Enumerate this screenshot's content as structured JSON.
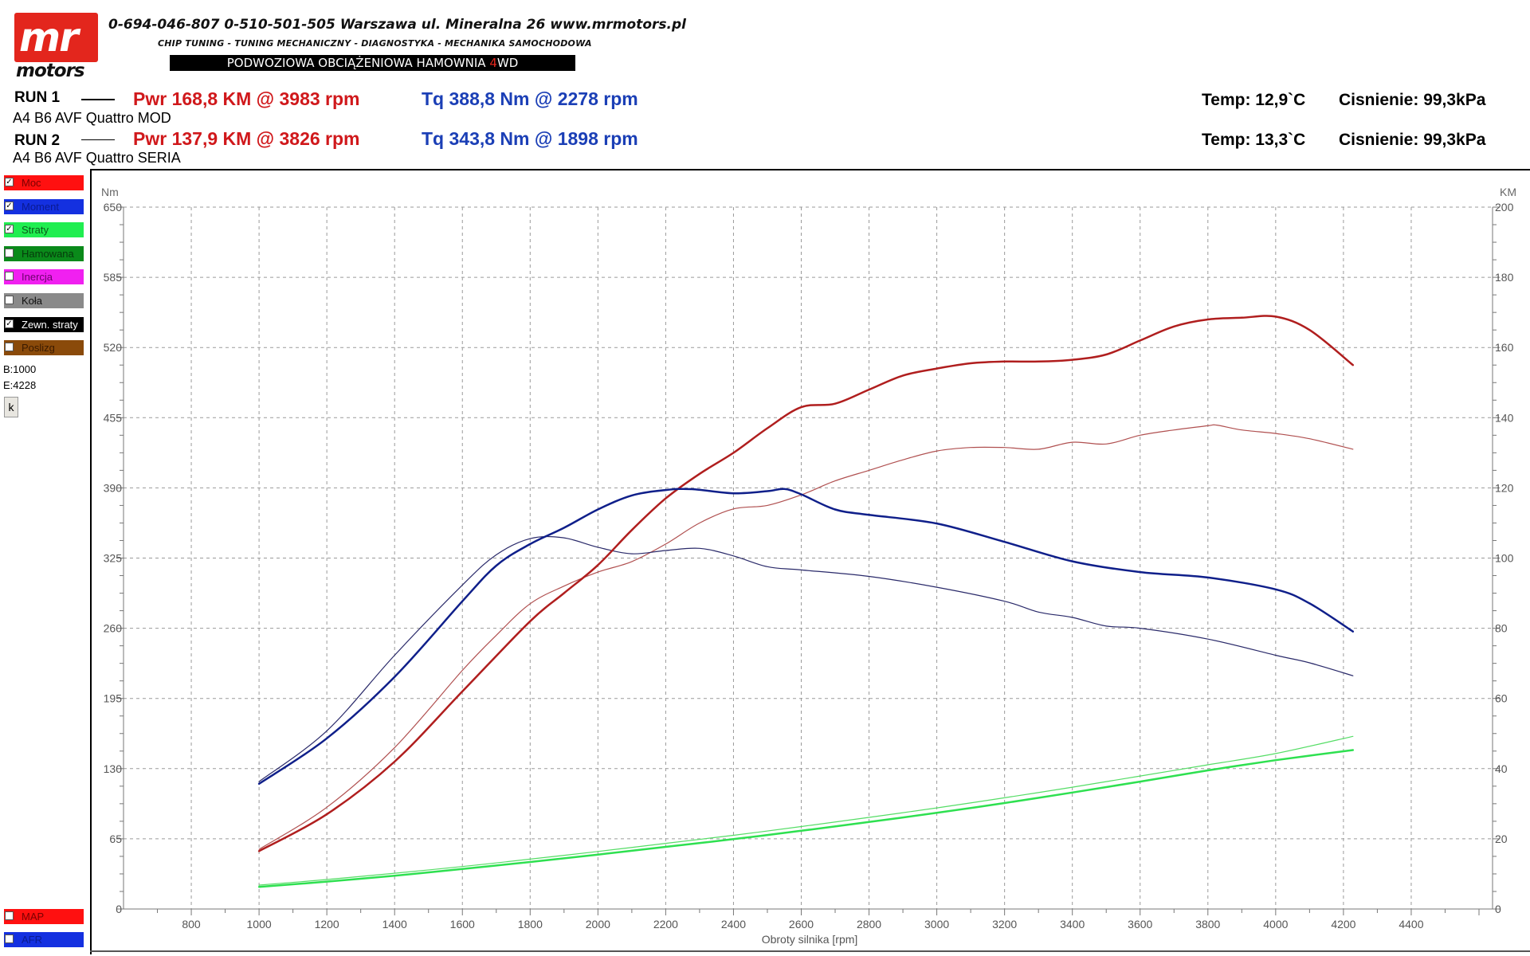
{
  "header": {
    "logo_top": "mr",
    "logo_bottom": "motors",
    "contact": "0-694-046-807   0-510-501-505   Warszawa ul. Mineralna 26   www.mrmotors.pl",
    "services": "CHIP TUNING - TUNING MECHANICZNY - DIAGNOSTYKA - MECHANIKA SAMOCHODOWA",
    "banner_main": "PODWOZIOWA OBCIĄŻENIOWA HAMOWNIA ",
    "banner_accent": "4",
    "banner_suffix": "WD"
  },
  "runs": [
    {
      "label": "RUN 1",
      "car": "A4 B6 AVF Quattro MOD",
      "pwr": "Pwr  168,8 KM @ 3983 rpm",
      "tq": "Tq 388,8 Nm @ 2278 rpm",
      "temp": "Temp: 12,9`C",
      "pressure": "Cisnienie: 99,3kPa"
    },
    {
      "label": "RUN 2",
      "car": "A4 B6 AVF Quattro SERIA",
      "pwr": "Pwr  137,9 KM @ 3826 rpm",
      "tq": "Tq 343,8 Nm @ 1898 rpm",
      "temp": "Temp: 13,3`C",
      "pressure": "Cisnienie: 99,3kPa"
    }
  ],
  "legend": [
    {
      "label": "Moc",
      "checked": true,
      "color": "#ff1010",
      "text_color": "#7a0000"
    },
    {
      "label": "Moment",
      "checked": true,
      "color": "#1430e0",
      "text_color": "#0a1a90"
    },
    {
      "label": "Straty",
      "checked": true,
      "color": "#20ee50",
      "text_color": "#0a5a1a"
    },
    {
      "label": "Hamowana",
      "checked": false,
      "color": "#0a8a1a",
      "text_color": "#063a0c"
    },
    {
      "label": "Inercja",
      "checked": false,
      "color": "#f020f0",
      "text_color": "#6a006a"
    },
    {
      "label": "Koła",
      "checked": false,
      "color": "#8a8a8a",
      "text_color": "#111111"
    },
    {
      "label": "Zewn. straty",
      "checked": true,
      "color": "#000000",
      "text_color": "#ffffff"
    },
    {
      "label": "Poslizg",
      "checked": false,
      "color": "#8a4a0a",
      "text_color": "#3a1a00"
    }
  ],
  "legend_bottom": [
    {
      "label": "MAP",
      "checked": false,
      "color": "#ff1010",
      "text_color": "#7a0000"
    },
    {
      "label": "AFR",
      "checked": false,
      "color": "#1430e0",
      "text_color": "#0a1a90"
    }
  ],
  "range_begin": "B:1000",
  "range_end": "E:4228",
  "k_button": "k",
  "chart_data": {
    "type": "line",
    "xlabel": "Obroty silnika [rpm]",
    "ylabel_left": "Nm",
    "ylabel_right": "KM",
    "xlim": [
      600,
      4640
    ],
    "x_ticks": [
      800,
      1000,
      1200,
      1400,
      1600,
      1800,
      2000,
      2200,
      2400,
      2600,
      2800,
      3000,
      3200,
      3400,
      3600,
      3800,
      4000,
      4200,
      4400
    ],
    "ylim_left": [
      0,
      650
    ],
    "y_ticks_left": [
      0,
      65,
      130,
      195,
      260,
      325,
      390,
      455,
      520,
      585,
      650
    ],
    "ylim_right": [
      0,
      200
    ],
    "y_ticks_right": [
      0,
      20,
      40,
      60,
      80,
      100,
      120,
      140,
      160,
      180,
      200
    ],
    "grid": true,
    "series": [
      {
        "name": "Pwr",
        "run": "RUN 1",
        "axis": "right",
        "color": "#b01e1e",
        "width": 2.5,
        "x": [
          1000,
          1200,
          1400,
          1600,
          1800,
          1900,
          2000,
          2100,
          2200,
          2300,
          2400,
          2500,
          2600,
          2700,
          2800,
          2900,
          3000,
          3100,
          3200,
          3300,
          3400,
          3500,
          3600,
          3700,
          3800,
          3900,
          4000,
          4100,
          4228
        ],
        "values": [
          16.5,
          27,
          42,
          62,
          82,
          90,
          98,
          108,
          117,
          124,
          130,
          137,
          143,
          144,
          148,
          152,
          154,
          155.5,
          156,
          156,
          156.5,
          158,
          162,
          166,
          168,
          168.5,
          168.8,
          165,
          155
        ]
      },
      {
        "name": "Pwr",
        "run": "RUN 2",
        "axis": "right",
        "color": "#b05050",
        "width": 1.2,
        "x": [
          1000,
          1200,
          1400,
          1600,
          1700,
          1800,
          1900,
          2000,
          2100,
          2200,
          2300,
          2400,
          2500,
          2600,
          2700,
          2800,
          2900,
          3000,
          3100,
          3200,
          3300,
          3400,
          3500,
          3600,
          3700,
          3800,
          3826,
          3900,
          4000,
          4100,
          4228
        ],
        "values": [
          17,
          29,
          46,
          68,
          78,
          87,
          92,
          96,
          99,
          104,
          110,
          114,
          115,
          118,
          122,
          125,
          128,
          130.5,
          131.5,
          131.5,
          131,
          133,
          132.5,
          135,
          136.5,
          137.7,
          137.9,
          136.5,
          135.5,
          134,
          131
        ]
      },
      {
        "name": "Tq",
        "run": "RUN 1",
        "axis": "left",
        "color": "#0f1f8a",
        "width": 2.5,
        "x": [
          1000,
          1200,
          1400,
          1600,
          1700,
          1800,
          1900,
          2000,
          2100,
          2200,
          2278,
          2400,
          2500,
          2550,
          2600,
          2700,
          2800,
          3000,
          3200,
          3400,
          3600,
          3800,
          4000,
          4100,
          4228
        ],
        "values": [
          116,
          158,
          215,
          285,
          318,
          338,
          353,
          370,
          383,
          388,
          388.8,
          385,
          387,
          389,
          384,
          370,
          365,
          357,
          340,
          322,
          312,
          307,
          296,
          283,
          257
        ]
      },
      {
        "name": "Tq",
        "run": "RUN 2",
        "axis": "left",
        "color": "#2a2a6a",
        "width": 1.2,
        "x": [
          1000,
          1200,
          1400,
          1600,
          1700,
          1800,
          1898,
          2000,
          2100,
          2200,
          2300,
          2400,
          2500,
          2600,
          2800,
          3000,
          3200,
          3300,
          3400,
          3500,
          3600,
          3800,
          4000,
          4100,
          4228
        ],
        "values": [
          118,
          165,
          235,
          300,
          328,
          343,
          343.8,
          335,
          329,
          332,
          334,
          327,
          317,
          314,
          308,
          298,
          285,
          275,
          270,
          262,
          260,
          250,
          235,
          228,
          216
        ]
      },
      {
        "name": "Straty",
        "run": "RUN 1",
        "axis": "right",
        "color": "#2ee050",
        "width": 2.5,
        "x": [
          1000,
          1200,
          1400,
          1600,
          1800,
          2000,
          2200,
          2400,
          2600,
          2800,
          3000,
          3200,
          3400,
          3600,
          3800,
          4000,
          4228
        ],
        "values": [
          6.3,
          7.8,
          9.5,
          11.4,
          13.4,
          15.5,
          17.7,
          19.9,
          22.3,
          24.8,
          27.4,
          30.2,
          33.2,
          36.3,
          39.5,
          42.4,
          45.3
        ]
      },
      {
        "name": "Straty",
        "run": "RUN 2",
        "axis": "right",
        "color": "#55dd66",
        "width": 1.2,
        "x": [
          1000,
          1200,
          1400,
          1600,
          1800,
          2000,
          2200,
          2400,
          2600,
          2800,
          3000,
          3200,
          3400,
          3600,
          3800,
          4000,
          4228
        ],
        "values": [
          6.8,
          8.4,
          10.2,
          12.1,
          14.2,
          16.4,
          18.7,
          21.0,
          23.5,
          26.1,
          28.8,
          31.7,
          34.7,
          37.9,
          41.1,
          44.3,
          49.2
        ]
      }
    ]
  }
}
